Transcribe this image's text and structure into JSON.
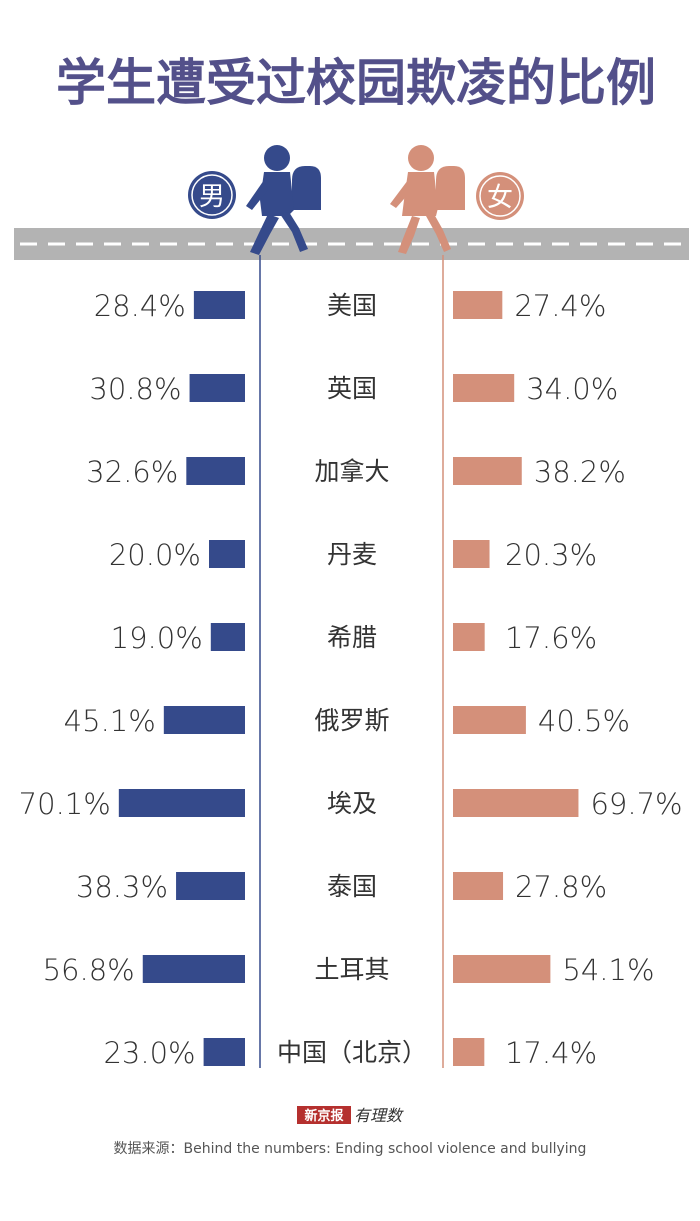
{
  "title": "学生遭受过校园欺凌的比例",
  "legend": {
    "male_label": "男",
    "female_label": "女"
  },
  "colors": {
    "title": "#53508a",
    "male": "#354a8b",
    "female": "#d4907a",
    "road": "#b3b3b3"
  },
  "source": {
    "brand": "新京报",
    "brand_sub": "有理数",
    "text": "数据来源：Behind the numbers: Ending school violence and bullying"
  },
  "chart_data": {
    "type": "bar",
    "title": "学生遭受过校园欺凌的比例",
    "categories": [
      "美国",
      "英国",
      "加拿大",
      "丹麦",
      "希腊",
      "俄罗斯",
      "埃及",
      "泰国",
      "土耳其",
      "中国（北京）"
    ],
    "unit": "%",
    "series": [
      {
        "name": "男",
        "values": [
          28.4,
          30.8,
          32.6,
          20.0,
          19.0,
          45.1,
          70.1,
          38.3,
          56.8,
          23.0
        ],
        "labels": [
          "28.4%",
          "30.8%",
          "32.6%",
          "20.0%",
          "19.0%",
          "45.1%",
          "70.1%",
          "38.3%",
          "56.8%",
          "23.0%"
        ]
      },
      {
        "name": "女",
        "values": [
          27.4,
          34.0,
          38.2,
          20.3,
          17.6,
          40.5,
          69.7,
          27.8,
          54.1,
          17.4
        ],
        "labels": [
          "27.4%",
          "34.0%",
          "38.2%",
          "20.3%",
          "17.6%",
          "40.5%",
          "69.7%",
          "27.8%",
          "54.1%",
          "17.4%"
        ]
      }
    ]
  }
}
